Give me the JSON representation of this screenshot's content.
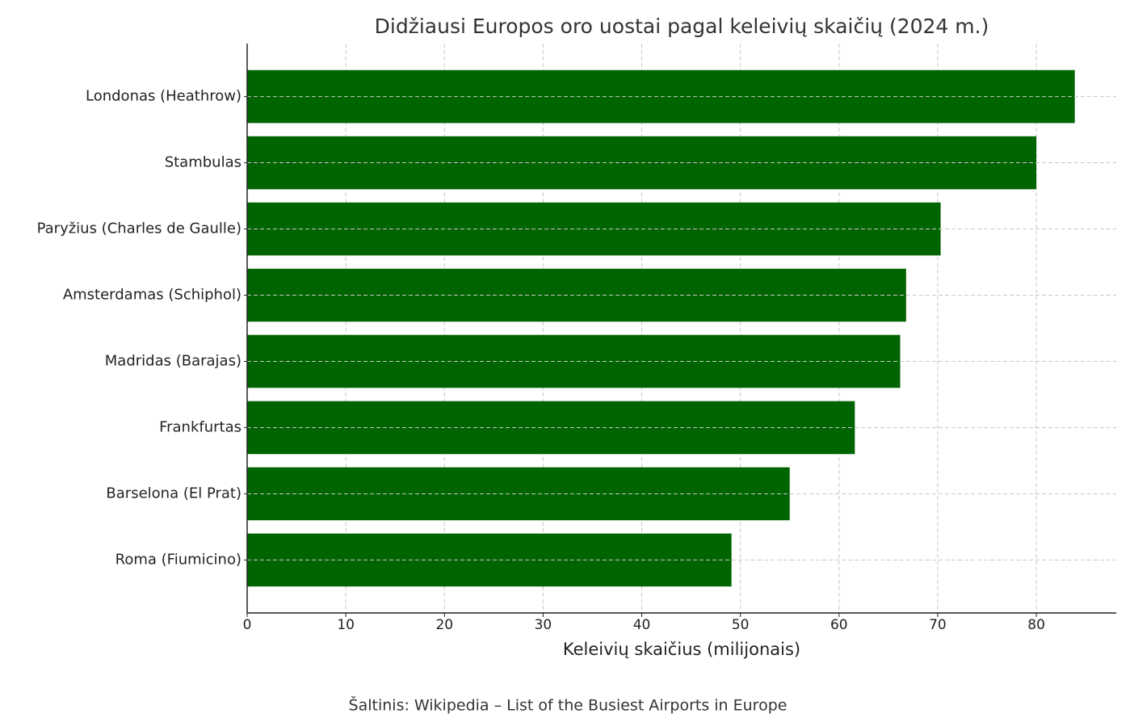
{
  "chart_data": {
    "type": "barh",
    "title": "Didžiausi Europos oro uostai pagal keleivių skaičių (2024 m.)",
    "x_label": "Keleivių skaičius (milijonais)",
    "source": "Šaltinis: Wikipedia – List of the Busiest Airports in Europe",
    "categories": [
      "Londonas (Heathrow)",
      "Stambulas",
      "Paryžius (Charles de Gaulle)",
      "Amsterdamas (Schiphol)",
      "Madridas (Barajas)",
      "Frankfurtas",
      "Barselona (El Prat)",
      "Roma (Fiumicino)"
    ],
    "values": [
      83.9,
      80.0,
      70.3,
      66.8,
      66.2,
      61.6,
      55.0,
      49.1
    ],
    "color": "#006400",
    "xlim": [
      0,
      88.1
    ],
    "xticks": [
      0,
      10,
      20,
      30,
      40,
      50,
      60,
      70,
      80
    ],
    "grid": true
  }
}
